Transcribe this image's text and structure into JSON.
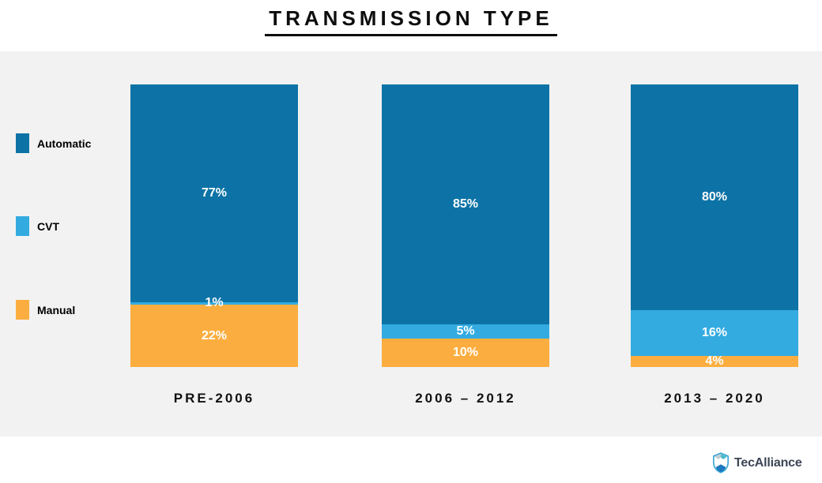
{
  "title": "TRANSMISSION TYPE",
  "chart_data": {
    "type": "bar",
    "stacked": true,
    "orientation": "vertical",
    "categories": [
      "PRE-2006",
      "2006 – 2012",
      "2013 – 2020"
    ],
    "series": [
      {
        "name": "Automatic",
        "color": "#0d73a6",
        "values": [
          77,
          85,
          80
        ]
      },
      {
        "name": "CVT",
        "color": "#33abe1",
        "values": [
          1,
          5,
          16
        ]
      },
      {
        "name": "Manual",
        "color": "#fbae3f",
        "values": [
          22,
          10,
          4
        ]
      }
    ],
    "value_suffix": "%",
    "data_labels": [
      "77%",
      "1%",
      "22%",
      "85%",
      "5%",
      "10%",
      "80%",
      "16%",
      "4%"
    ],
    "legend_position": "left",
    "legend_order": [
      "Automatic",
      "CVT",
      "Manual"
    ],
    "axis": "none",
    "grid": false,
    "panel_background": "#f2f2f2",
    "label_color": "#ffffff"
  },
  "footer": {
    "logo_text": "TecAlliance"
  }
}
